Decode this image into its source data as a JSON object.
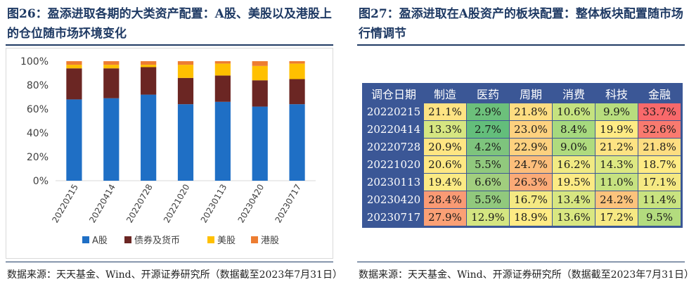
{
  "left": {
    "title": "图26：盈添进取各期的大类资产配置：A股、美股以及港股上的仓位随市场环境变化",
    "source": "数据来源：天天基金、Wind、开源证券研究所（数据截至2023年7月31日）"
  },
  "right": {
    "title": "图27：盈添进取在A股资产的板块配置：整体板块配置随市场行情调节",
    "source": "数据来源：天天基金、Wind、开源证券研究所（数据截至2023年7月31日）"
  },
  "chart_data": [
    {
      "type": "bar",
      "stacked": true,
      "categories": [
        "20220215",
        "20220414",
        "20220728",
        "20221020",
        "20230113",
        "20230420",
        "20230717"
      ],
      "series": [
        {
          "name": "A股",
          "color": "#1f6fc5",
          "values": [
            68,
            69,
            72,
            64,
            66,
            62,
            64
          ]
        },
        {
          "name": "债券及货币",
          "color": "#6b2623",
          "values": [
            26,
            25,
            23,
            22,
            22,
            22,
            21
          ]
        },
        {
          "name": "美股",
          "color": "#ffc000",
          "values": [
            3,
            3,
            2,
            11,
            10,
            12,
            13
          ]
        },
        {
          "name": "港股",
          "color": "#ed7d31",
          "values": [
            3,
            3,
            3,
            3,
            2,
            4,
            2
          ]
        }
      ],
      "yticks": [
        "0%",
        "20%",
        "40%",
        "60%",
        "80%",
        "100%"
      ],
      "ylim": [
        0,
        100
      ],
      "legend_position": "bottom",
      "grid": false
    },
    {
      "type": "table",
      "columns": [
        "调仓日期",
        "制造",
        "医药",
        "周期",
        "消费",
        "科技",
        "金融"
      ],
      "rows": [
        {
          "date": "20220215",
          "values": [
            "21.1%",
            "2.9%",
            "21.8%",
            "10.6%",
            "9.9%",
            "33.7%"
          ],
          "colors": [
            "#fde383",
            "#6cc07b",
            "#fddd81",
            "#c5e27f",
            "#b8dd7e",
            "#f8696b"
          ]
        },
        {
          "date": "20220414",
          "values": [
            "13.3%",
            "2.7%",
            "23.0%",
            "8.4%",
            "19.9%",
            "32.6%"
          ],
          "colors": [
            "#d6e681",
            "#63be7b",
            "#fdd17f",
            "#a6d97e",
            "#ffeb84",
            "#f97a6f"
          ]
        },
        {
          "date": "20220728",
          "values": [
            "20.9%",
            "4.2%",
            "22.9%",
            "9.0%",
            "21.2%",
            "21.8%"
          ],
          "colors": [
            "#fee683",
            "#7ec47d",
            "#fdd17f",
            "#afdb7e",
            "#fde383",
            "#fddd81"
          ]
        },
        {
          "date": "20221020",
          "values": [
            "20.6%",
            "5.5%",
            "24.7%",
            "16.2%",
            "14.3%",
            "18.7%"
          ],
          "colors": [
            "#fee883",
            "#91c97d",
            "#fcbe7b",
            "#f1ea83",
            "#dde882",
            "#ffeb84"
          ]
        },
        {
          "date": "20230113",
          "values": [
            "19.4%",
            "6.6%",
            "26.3%",
            "19.5%",
            "11.0%",
            "17.1%"
          ],
          "colors": [
            "#fbea84",
            "#a1ce7e",
            "#fbaa77",
            "#fcea84",
            "#c6e280",
            "#f5e983"
          ]
        },
        {
          "date": "20230420",
          "values": [
            "28.4%",
            "5.5%",
            "16.7%",
            "13.4%",
            "24.2%",
            "11.4%"
          ],
          "colors": [
            "#fa9a74",
            "#91c97d",
            "#f4e983",
            "#d7e681",
            "#fcc37c",
            "#c9e380"
          ]
        },
        {
          "date": "20230717",
          "values": [
            "27.9%",
            "12.9%",
            "18.9%",
            "13.6%",
            "17.2%",
            "9.5%"
          ],
          "colors": [
            "#fba075",
            "#d4e581",
            "#ffeb84",
            "#d9e781",
            "#f6e983",
            "#b3dc7e"
          ]
        }
      ]
    }
  ]
}
